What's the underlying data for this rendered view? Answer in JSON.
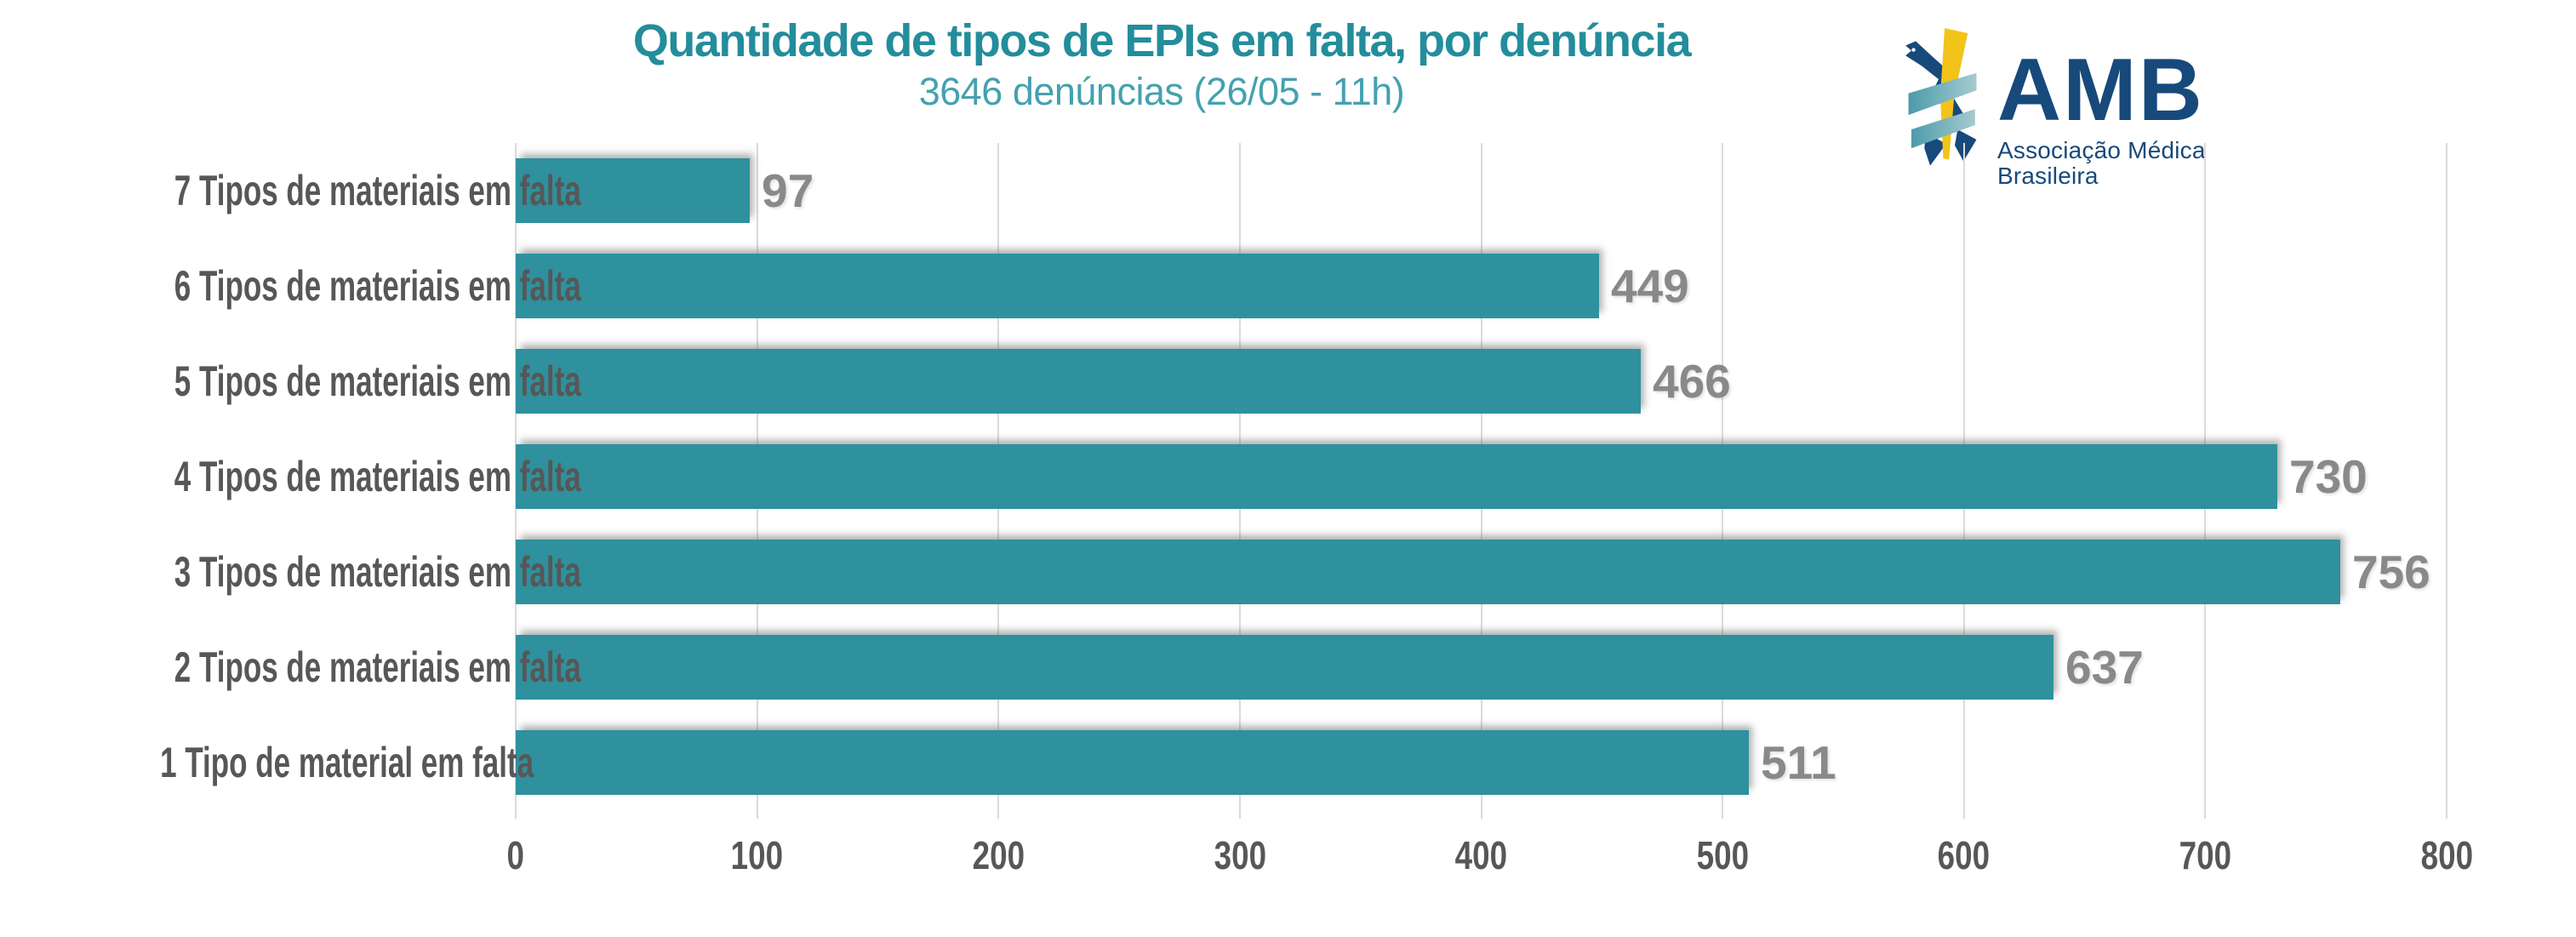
{
  "header": {
    "title": "Quantidade de tipos de EPIs em falta, por denúncia",
    "subtitle": "3646 denúncias (26/05 - 11h)",
    "title_color": "#238D9C",
    "subtitle_color": "#45A1AF"
  },
  "logo": {
    "acronym": "AMB",
    "tagline": "Associação Médica Brasileira",
    "navy": "#17497B",
    "yellow": "#F2C319",
    "teal": "#4D9BAA",
    "teal_light": "#A5CBD0"
  },
  "chart_data": {
    "type": "bar",
    "orientation": "horizontal",
    "title": "Quantidade de tipos de EPIs em falta, por denúncia",
    "subtitle": "3646 denúncias (26/05 - 11h)",
    "categories": [
      "7 Tipos de materiais em falta",
      "6 Tipos de materiais em falta",
      "5 Tipos de materiais em falta",
      "4 Tipos de materiais em falta",
      "3 Tipos de materiais em falta",
      "2 Tipos de materiais em falta",
      "1 Tipo de material em falta"
    ],
    "values": [
      97,
      449,
      466,
      730,
      756,
      637,
      511
    ],
    "xlabel": "",
    "ylabel": "",
    "xlim": [
      0,
      800
    ],
    "xticks": [
      0,
      100,
      200,
      300,
      400,
      500,
      600,
      700,
      800
    ],
    "grid": true,
    "legend": false,
    "bar_color": "#2E919D",
    "gridline_color": "#DBDBDB",
    "axis_label_color": "#575757",
    "value_label_color": "#898989"
  }
}
